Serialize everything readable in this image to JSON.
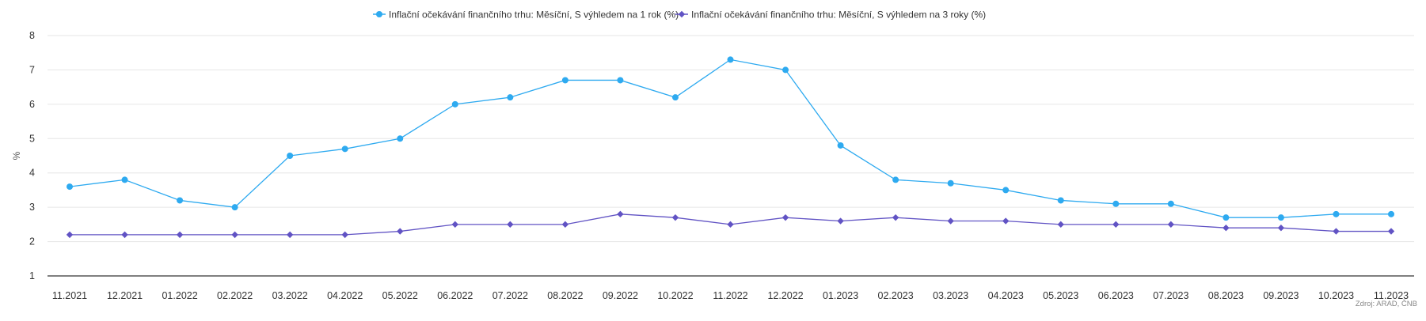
{
  "chart_data": {
    "type": "line",
    "title": "",
    "xlabel": "",
    "ylabel": "%",
    "ylim": [
      1,
      8
    ],
    "yticks": [
      1,
      2,
      3,
      4,
      5,
      6,
      7,
      8
    ],
    "grid": true,
    "legend_position": "top-center",
    "source": "Zdroj: ARAD, ČNB",
    "categories": [
      "11.2021",
      "12.2021",
      "01.2022",
      "02.2022",
      "03.2022",
      "04.2022",
      "05.2022",
      "06.2022",
      "07.2022",
      "08.2022",
      "09.2022",
      "10.2022",
      "11.2022",
      "12.2022",
      "01.2023",
      "02.2023",
      "03.2023",
      "04.2023",
      "05.2023",
      "06.2023",
      "07.2023",
      "08.2023",
      "09.2023",
      "10.2023",
      "11.2023"
    ],
    "series": [
      {
        "name": "Inflační očekávání finančního trhu: Měsíční, S výhledem na 1 rok (%)",
        "color": "#2eaaf0",
        "marker": "circle",
        "values": [
          3.6,
          3.8,
          3.2,
          3.0,
          4.5,
          4.7,
          5.0,
          6.0,
          6.2,
          6.7,
          6.7,
          6.2,
          7.3,
          7.0,
          4.8,
          3.8,
          3.7,
          3.5,
          3.2,
          3.1,
          3.1,
          2.7,
          2.7,
          2.8,
          2.8
        ]
      },
      {
        "name": "Inflační očekávání finančního trhu: Měsíční, S výhledem na 3 roky (%)",
        "color": "#6153c4",
        "marker": "diamond",
        "values": [
          2.2,
          2.2,
          2.2,
          2.2,
          2.2,
          2.2,
          2.3,
          2.5,
          2.5,
          2.5,
          2.8,
          2.7,
          2.5,
          2.7,
          2.6,
          2.7,
          2.6,
          2.6,
          2.5,
          2.5,
          2.5,
          2.4,
          2.4,
          2.3,
          2.3
        ]
      }
    ]
  }
}
